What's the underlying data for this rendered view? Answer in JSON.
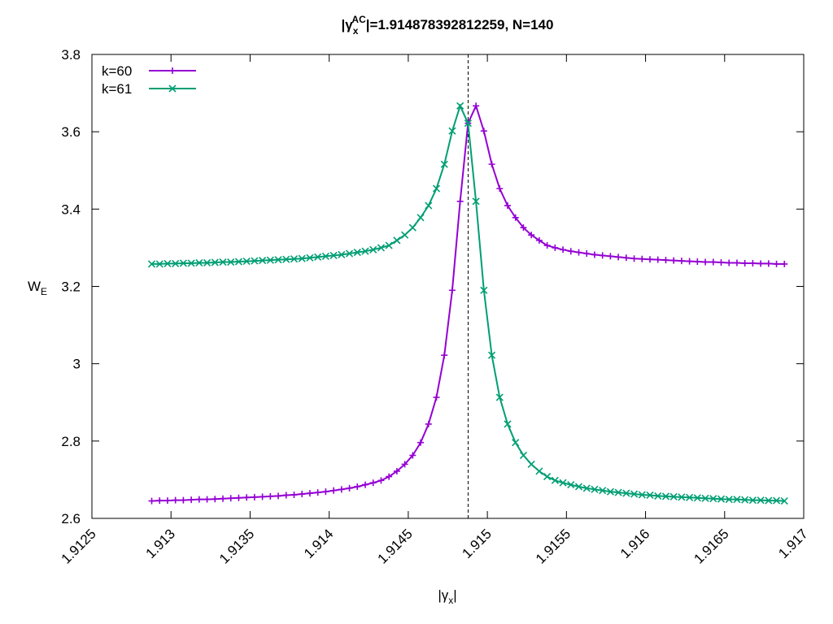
{
  "chart_data": {
    "type": "line",
    "title": {
      "prefix": "|γ",
      "subscript": "x",
      "superscript": "AC",
      "suffix": "|=1.914878392812259, N=140"
    },
    "xlabel": {
      "prefix": "|γ",
      "subscript": "x",
      "suffix": "|"
    },
    "ylabel": {
      "base": "W",
      "subscript": "E"
    },
    "xlim": [
      1.9125,
      1.917
    ],
    "ylim": [
      2.6,
      3.8
    ],
    "xticks": [
      1.9125,
      1.913,
      1.9135,
      1.914,
      1.9145,
      1.915,
      1.9155,
      1.916,
      1.9165,
      1.917
    ],
    "yticks": [
      2.6,
      2.8,
      3,
      3.2,
      3.4,
      3.6,
      3.8
    ],
    "vline_x": 1.914878392812259,
    "legend": "top-left",
    "x": [
      1.912878,
      1.912928,
      1.912978,
      1.913028,
      1.913078,
      1.913128,
      1.913178,
      1.913228,
      1.913278,
      1.913328,
      1.913378,
      1.913428,
      1.913478,
      1.913528,
      1.913578,
      1.913628,
      1.913678,
      1.913728,
      1.913778,
      1.913828,
      1.913878,
      1.913928,
      1.913978,
      1.914028,
      1.914078,
      1.914128,
      1.914178,
      1.914228,
      1.914278,
      1.914328,
      1.914378,
      1.914428,
      1.914478,
      1.914528,
      1.914578,
      1.914628,
      1.914678,
      1.914728,
      1.914778,
      1.914828,
      1.914878,
      1.914928,
      1.914978,
      1.915028,
      1.915078,
      1.915128,
      1.915178,
      1.915228,
      1.915278,
      1.915328,
      1.915378,
      1.915428,
      1.915478,
      1.915528,
      1.915578,
      1.915628,
      1.915678,
      1.915728,
      1.915778,
      1.915828,
      1.915878,
      1.915928,
      1.915978,
      1.916028,
      1.916078,
      1.916128,
      1.916178,
      1.916228,
      1.916278,
      1.916328,
      1.916378,
      1.916428,
      1.916478,
      1.916528,
      1.916578,
      1.916628,
      1.916678,
      1.916728,
      1.916778,
      1.916828,
      1.916878
    ],
    "series": [
      {
        "name": "k=60",
        "color": "#9400d3",
        "marker": "plus",
        "values": [
          2.645,
          2.646,
          2.646,
          2.647,
          2.647,
          2.648,
          2.649,
          2.649,
          2.65,
          2.651,
          2.652,
          2.653,
          2.654,
          2.655,
          2.656,
          2.657,
          2.658,
          2.66,
          2.661,
          2.663,
          2.665,
          2.667,
          2.669,
          2.672,
          2.675,
          2.678,
          2.682,
          2.687,
          2.692,
          2.698,
          2.708,
          2.722,
          2.74,
          2.763,
          2.796,
          2.844,
          2.913,
          3.022,
          3.19,
          3.42,
          3.622,
          3.667,
          3.602,
          3.516,
          3.453,
          3.409,
          3.378,
          3.352,
          3.333,
          3.319,
          3.306,
          3.3,
          3.295,
          3.291,
          3.288,
          3.285,
          3.282,
          3.28,
          3.278,
          3.276,
          3.274,
          3.272,
          3.271,
          3.27,
          3.269,
          3.268,
          3.267,
          3.266,
          3.265,
          3.264,
          3.263,
          3.263,
          3.262,
          3.261,
          3.261,
          3.26,
          3.26,
          3.259,
          3.259,
          3.258,
          3.258
        ]
      },
      {
        "name": "k=61",
        "color": "#009e73",
        "marker": "cross",
        "values": [
          3.258,
          3.258,
          3.259,
          3.259,
          3.26,
          3.26,
          3.261,
          3.261,
          3.262,
          3.263,
          3.263,
          3.264,
          3.265,
          3.266,
          3.267,
          3.268,
          3.269,
          3.27,
          3.271,
          3.272,
          3.274,
          3.276,
          3.278,
          3.28,
          3.282,
          3.285,
          3.288,
          3.291,
          3.295,
          3.3,
          3.306,
          3.319,
          3.333,
          3.352,
          3.378,
          3.409,
          3.453,
          3.516,
          3.602,
          3.667,
          3.622,
          3.42,
          3.19,
          3.022,
          2.913,
          2.844,
          2.796,
          2.763,
          2.74,
          2.722,
          2.708,
          2.698,
          2.692,
          2.687,
          2.682,
          2.678,
          2.675,
          2.672,
          2.669,
          2.667,
          2.665,
          2.663,
          2.661,
          2.66,
          2.658,
          2.657,
          2.656,
          2.655,
          2.654,
          2.653,
          2.652,
          2.651,
          2.65,
          2.649,
          2.649,
          2.648,
          2.647,
          2.647,
          2.646,
          2.646,
          2.645
        ]
      }
    ]
  }
}
